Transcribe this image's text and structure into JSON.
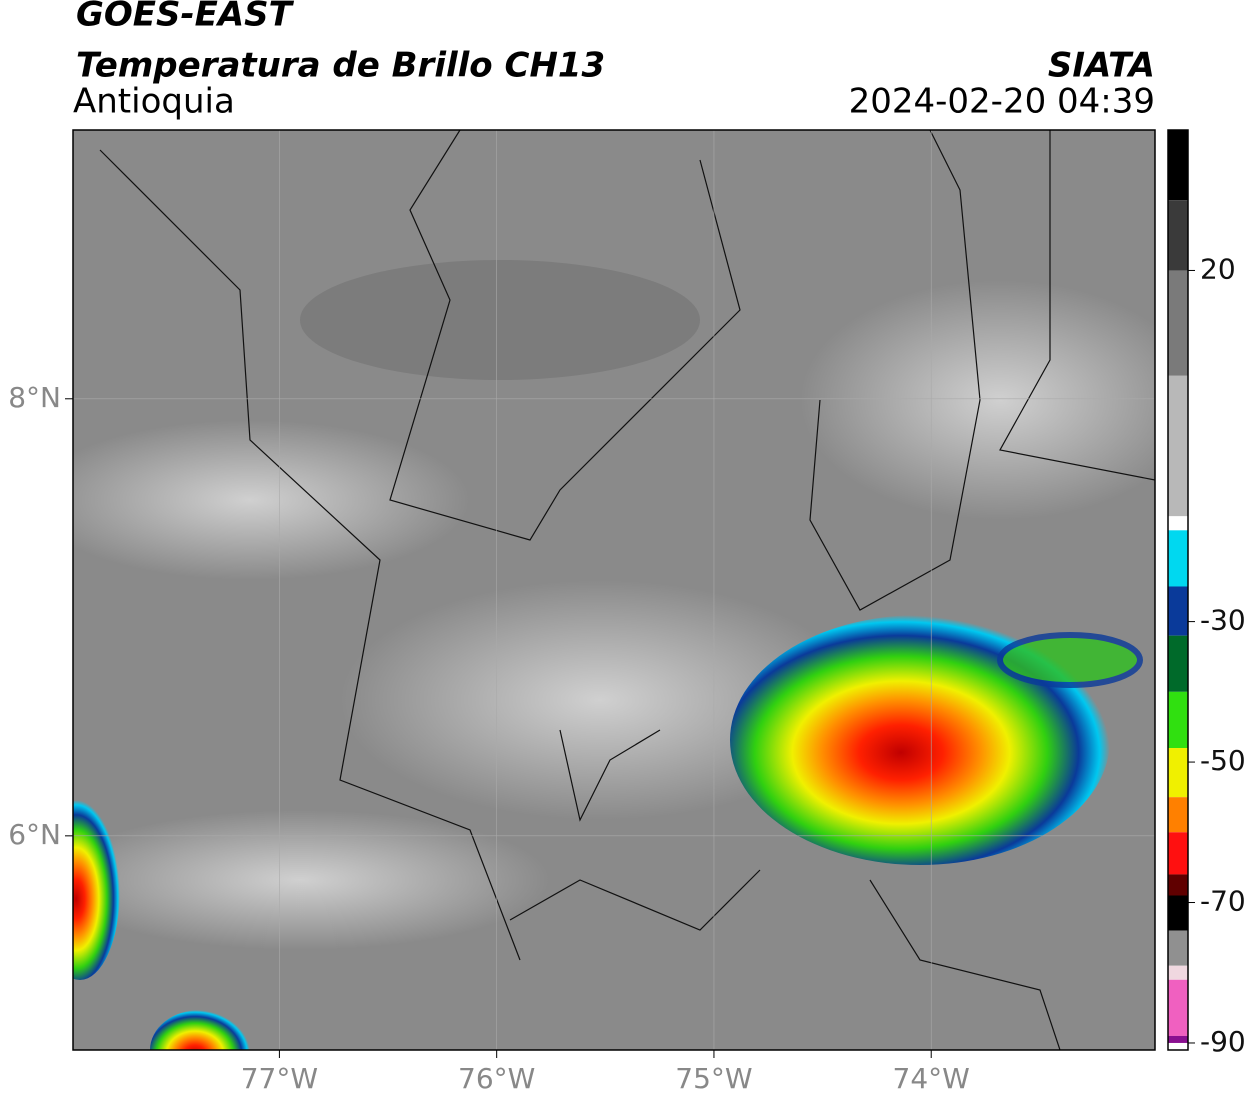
{
  "header": {
    "title": "GOES-EAST",
    "subtitle": "Temperatura de Brillo CH13",
    "region": "Antioquia",
    "source": "SIATA",
    "datetime": "2024-02-20 04:39"
  },
  "map": {
    "lonlim": [
      -77.95,
      -72.97
    ],
    "latlim": [
      5.02,
      9.23
    ],
    "lonticks": [
      {
        "value": -77,
        "label": "77°W"
      },
      {
        "value": -76,
        "label": "76°W"
      },
      {
        "value": -75,
        "label": "75°W"
      },
      {
        "value": -74,
        "label": "74°W"
      }
    ],
    "latticks": [
      {
        "value": 8,
        "label": "8°N"
      },
      {
        "value": 6,
        "label": "6°N"
      }
    ],
    "grid": true
  },
  "colorbar": {
    "lim": [
      -91,
      40
    ],
    "ticks": [
      20,
      -30,
      -50,
      -70,
      -90
    ],
    "colormap": [
      {
        "value": 40,
        "color": "#000000"
      },
      {
        "value": 30,
        "color": "#3a3a3a"
      },
      {
        "value": 20,
        "color": "#7a7a7a"
      },
      {
        "value": 5,
        "color": "#b8b8b8"
      },
      {
        "value": -15,
        "color": "#ffffff"
      },
      {
        "value": -17,
        "color": "#00d8f0"
      },
      {
        "value": -25,
        "color": "#0a3a9a"
      },
      {
        "value": -32,
        "color": "#006a2a"
      },
      {
        "value": -40,
        "color": "#30e010"
      },
      {
        "value": -48,
        "color": "#f0f000"
      },
      {
        "value": -55,
        "color": "#ff8000"
      },
      {
        "value": -60,
        "color": "#ff1010"
      },
      {
        "value": -66,
        "color": "#600000"
      },
      {
        "value": -69,
        "color": "#000000"
      },
      {
        "value": -74,
        "color": "#909090"
      },
      {
        "value": -79,
        "color": "#f0d8e0"
      },
      {
        "value": -81,
        "color": "#f060c0"
      },
      {
        "value": -89,
        "color": "#8a1090"
      },
      {
        "value": -90,
        "color": "#ffffff"
      }
    ]
  }
}
